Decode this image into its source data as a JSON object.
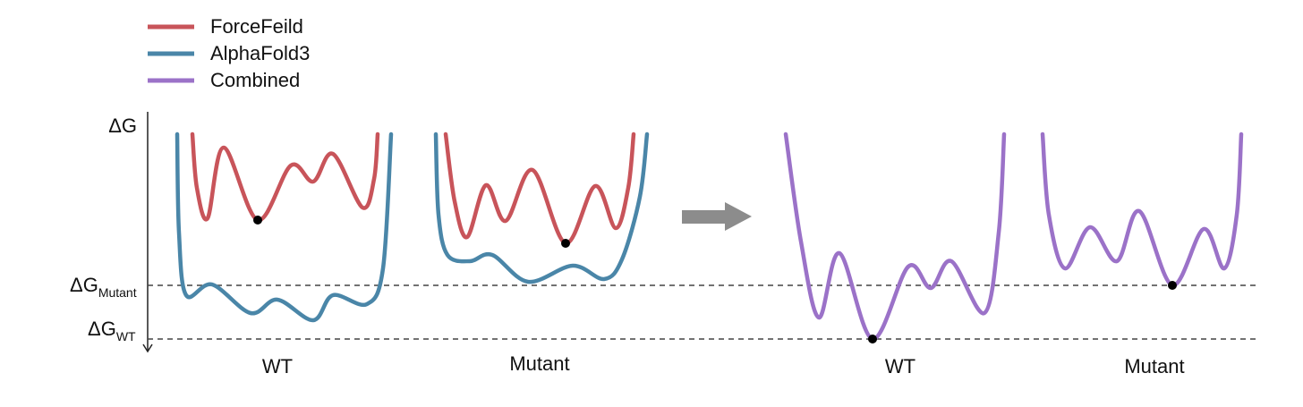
{
  "legend": {
    "items": [
      "ForceFeild",
      "AlphaFold3",
      "Combined"
    ]
  },
  "axis": {
    "label": "ΔG",
    "levels": [
      {
        "symbol": "ΔG",
        "subscript": "Mutant"
      },
      {
        "symbol": "ΔG",
        "subscript": "WT"
      }
    ]
  },
  "panels": {
    "before": [
      "WT",
      "Mutant"
    ],
    "after": [
      "WT",
      "Mutant"
    ]
  }
}
